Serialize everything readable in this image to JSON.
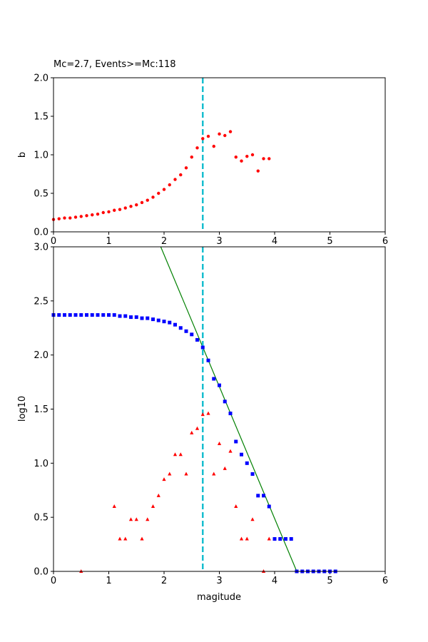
{
  "chart_data": [
    {
      "type": "scatter",
      "title": "Mc=2.7, Events>=Mc:118",
      "xlabel": "",
      "ylabel": "b",
      "xlim": [
        0,
        6
      ],
      "ylim": [
        0,
        2
      ],
      "xticks": [
        0,
        1,
        2,
        3,
        4,
        5,
        6
      ],
      "yticks": [
        0.0,
        0.5,
        1.0,
        1.5,
        2.0
      ],
      "grid": false,
      "mc_line": {
        "x": 2.7,
        "color": "#17becf"
      },
      "series": [
        {
          "name": "",
          "color": "#ff0000",
          "marker": "circle",
          "x": [
            0.0,
            0.1,
            0.2,
            0.3,
            0.4,
            0.5,
            0.6,
            0.7,
            0.8,
            0.9,
            1.0,
            1.1,
            1.2,
            1.3,
            1.4,
            1.5,
            1.6,
            1.7,
            1.8,
            1.9,
            2.0,
            2.1,
            2.2,
            2.3,
            2.4,
            2.5,
            2.6,
            2.7,
            2.8,
            2.9,
            3.0,
            3.1,
            3.2,
            3.3,
            3.4,
            3.5,
            3.6,
            3.7,
            3.8,
            3.9
          ],
          "y": [
            0.16,
            0.17,
            0.18,
            0.18,
            0.19,
            0.2,
            0.21,
            0.22,
            0.23,
            0.25,
            0.26,
            0.28,
            0.29,
            0.31,
            0.33,
            0.35,
            0.38,
            0.41,
            0.45,
            0.5,
            0.55,
            0.61,
            0.68,
            0.74,
            0.83,
            0.97,
            1.09,
            1.21,
            1.24,
            1.11,
            1.27,
            1.25,
            1.3,
            0.97,
            0.92,
            0.98,
            1.0,
            0.79,
            0.95,
            0.95
          ]
        }
      ]
    },
    {
      "type": "scatter",
      "title": "",
      "xlabel": "magitude",
      "ylabel": "log10",
      "xlim": [
        0,
        6
      ],
      "ylim": [
        0,
        3
      ],
      "xticks": [
        0,
        1,
        2,
        3,
        4,
        5,
        6
      ],
      "yticks": [
        0.0,
        0.5,
        1.0,
        1.5,
        2.0,
        2.5,
        3.0
      ],
      "grid": false,
      "mc_line": {
        "x": 2.7,
        "color": "#17becf"
      },
      "fit_line": {
        "color": "#008000",
        "x": [
          1.94,
          4.4
        ],
        "y": [
          3.0,
          0.0
        ]
      },
      "series": [
        {
          "name": "",
          "color": "#0000ff",
          "marker": "square",
          "x": [
            0.0,
            0.1,
            0.2,
            0.3,
            0.4,
            0.5,
            0.6,
            0.7,
            0.8,
            0.9,
            1.0,
            1.1,
            1.2,
            1.3,
            1.4,
            1.5,
            1.6,
            1.7,
            1.8,
            1.9,
            2.0,
            2.1,
            2.2,
            2.3,
            2.4,
            2.5,
            2.6,
            2.7,
            2.8,
            2.9,
            3.0,
            3.1,
            3.2,
            3.3,
            3.4,
            3.5,
            3.6,
            3.7,
            3.8,
            3.9,
            4.0,
            4.1,
            4.2,
            4.3,
            4.4,
            4.5,
            4.6,
            4.7,
            4.8,
            4.9,
            5.0,
            5.1
          ],
          "y": [
            2.37,
            2.37,
            2.37,
            2.37,
            2.37,
            2.37,
            2.37,
            2.37,
            2.37,
            2.37,
            2.37,
            2.37,
            2.36,
            2.36,
            2.35,
            2.35,
            2.34,
            2.34,
            2.33,
            2.32,
            2.31,
            2.3,
            2.28,
            2.25,
            2.22,
            2.19,
            2.14,
            2.07,
            1.95,
            1.78,
            1.72,
            1.57,
            1.46,
            1.2,
            1.08,
            1.0,
            0.9,
            0.7,
            0.7,
            0.6,
            0.3,
            0.3,
            0.3,
            0.3,
            0.0,
            0.0,
            0.0,
            0.0,
            0.0,
            0.0,
            0.0,
            0.0
          ]
        },
        {
          "name": "",
          "color": "#ff0000",
          "marker": "triangle",
          "x": [
            0.5,
            1.1,
            1.2,
            1.3,
            1.4,
            1.5,
            1.6,
            1.7,
            1.8,
            1.9,
            2.0,
            2.1,
            2.2,
            2.3,
            2.4,
            2.5,
            2.6,
            2.7,
            2.8,
            2.9,
            3.0,
            3.1,
            3.2,
            3.3,
            3.4,
            3.5,
            3.6,
            3.8,
            3.9
          ],
          "y": [
            0.0,
            0.6,
            0.3,
            0.3,
            0.48,
            0.48,
            0.3,
            0.48,
            0.6,
            0.7,
            0.85,
            0.9,
            1.08,
            1.08,
            0.9,
            1.28,
            1.32,
            1.45,
            1.46,
            0.9,
            1.18,
            0.95,
            1.11,
            0.6,
            0.3,
            0.3,
            0.48,
            0.0,
            0.3
          ]
        }
      ]
    }
  ]
}
